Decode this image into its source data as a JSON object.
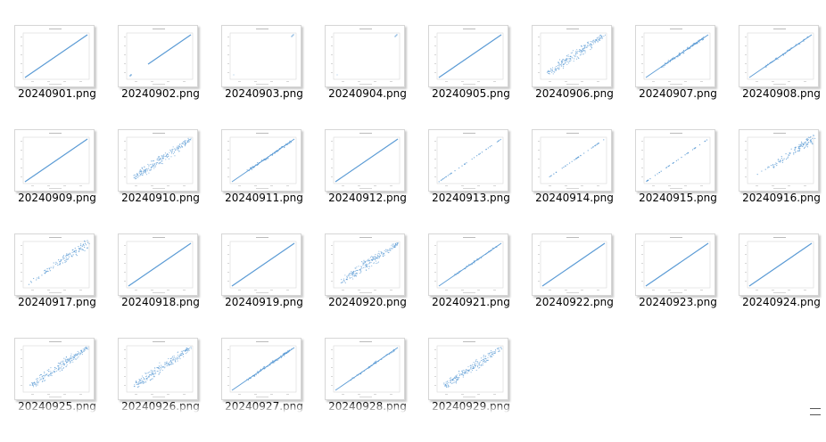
{
  "window": {
    "view": "large-icons",
    "accent_color": "#5b9bd5",
    "files": [
      {
        "name": "20240901.png",
        "chart": "line"
      },
      {
        "name": "20240902.png",
        "chart": "line-partial"
      },
      {
        "name": "20240903.png",
        "chart": "sparse-corner"
      },
      {
        "name": "20240904.png",
        "chart": "sparse-corner"
      },
      {
        "name": "20240905.png",
        "chart": "line"
      },
      {
        "name": "20240906.png",
        "chart": "dense-scatter"
      },
      {
        "name": "20240907.png",
        "chart": "line-thick"
      },
      {
        "name": "20240908.png",
        "chart": "line-medium"
      },
      {
        "name": "20240909.png",
        "chart": "line"
      },
      {
        "name": "20240910.png",
        "chart": "dense-scatter"
      },
      {
        "name": "20240911.png",
        "chart": "line-thick"
      },
      {
        "name": "20240912.png",
        "chart": "line"
      },
      {
        "name": "20240913.png",
        "chart": "dotted-line"
      },
      {
        "name": "20240914.png",
        "chart": "dotted-line"
      },
      {
        "name": "20240915.png",
        "chart": "dotted-line"
      },
      {
        "name": "20240916.png",
        "chart": "upper-scatter"
      },
      {
        "name": "20240917.png",
        "chart": "upper-scatter"
      },
      {
        "name": "20240918.png",
        "chart": "line"
      },
      {
        "name": "20240919.png",
        "chart": "line"
      },
      {
        "name": "20240920.png",
        "chart": "dense-scatter"
      },
      {
        "name": "20240921.png",
        "chart": "line-medium"
      },
      {
        "name": "20240922.png",
        "chart": "line"
      },
      {
        "name": "20240923.png",
        "chart": "line"
      },
      {
        "name": "20240924.png",
        "chart": "line"
      },
      {
        "name": "20240925.png",
        "chart": "dense-scatter"
      },
      {
        "name": "20240926.png",
        "chart": "dense-scatter"
      },
      {
        "name": "20240927.png",
        "chart": "line-thick"
      },
      {
        "name": "20240928.png",
        "chart": "line-medium"
      },
      {
        "name": "20240929.png",
        "chart": "dense-scatter"
      }
    ]
  }
}
